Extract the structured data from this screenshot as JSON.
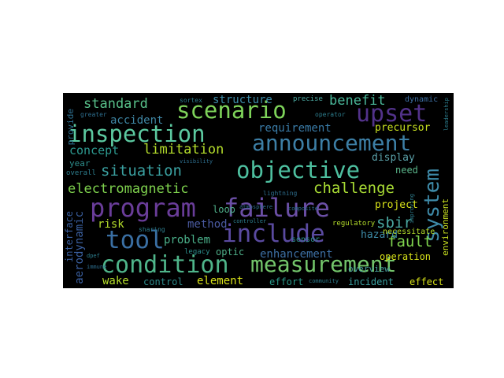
{
  "word_cloud": {
    "background": "#000000",
    "words": [
      {
        "text": "program",
        "color": "#6a3d9a"
      },
      {
        "text": "failure",
        "color": "#6b4fa6"
      },
      {
        "text": "include",
        "color": "#5a4aa0"
      },
      {
        "text": "condition",
        "color": "#4fb58a"
      },
      {
        "text": "measurement",
        "color": "#73c56b"
      },
      {
        "text": "announcement",
        "color": "#3d7fa6"
      },
      {
        "text": "objective",
        "color": "#4ec0a0"
      },
      {
        "text": "inspection",
        "color": "#5cc9a0"
      },
      {
        "text": "scenario",
        "color": "#7ed35a"
      },
      {
        "text": "upset",
        "color": "#52328a"
      },
      {
        "text": "tool",
        "color": "#3a6fa3"
      },
      {
        "text": "system",
        "color": "#3e8aa8"
      },
      {
        "text": "electromagnetic",
        "color": "#7fd34e"
      },
      {
        "text": "situation",
        "color": "#3aa0a0"
      },
      {
        "text": "challenge",
        "color": "#a8db34"
      },
      {
        "text": "standard",
        "color": "#58c08a"
      },
      {
        "text": "limitation",
        "color": "#b5de2b"
      },
      {
        "text": "benefit",
        "color": "#4ab89a"
      },
      {
        "text": "structure",
        "color": "#3d8ca8"
      },
      {
        "text": "accident",
        "color": "#3f87a5"
      },
      {
        "text": "concept",
        "color": "#2d9a90"
      },
      {
        "text": "requirement",
        "color": "#3a7ca8"
      },
      {
        "text": "fault",
        "color": "#7fd34e"
      },
      {
        "text": "sbir",
        "color": "#4aa8a0"
      },
      {
        "text": "enhancement",
        "color": "#3d6fa3"
      },
      {
        "text": "aerodynamic",
        "color": "#3a5f9f"
      },
      {
        "text": "wake",
        "color": "#b5de2b"
      },
      {
        "text": "control",
        "color": "#2d8a8a"
      },
      {
        "text": "element",
        "color": "#d8e219"
      },
      {
        "text": "effort",
        "color": "#2a9a8a"
      },
      {
        "text": "incident",
        "color": "#3aa0a0"
      },
      {
        "text": "effect",
        "color": "#d8e219"
      },
      {
        "text": "problem",
        "color": "#4ab08a"
      },
      {
        "text": "method",
        "color": "#4a5aa0"
      },
      {
        "text": "risk",
        "color": "#b5de2b"
      },
      {
        "text": "loop",
        "color": "#4fb08a"
      },
      {
        "text": "optic",
        "color": "#4fb08a"
      },
      {
        "text": "display",
        "color": "#5aa0a8"
      },
      {
        "text": "precursor",
        "color": "#c8e020"
      },
      {
        "text": "need",
        "color": "#5ab58a"
      },
      {
        "text": "project",
        "color": "#d8e219"
      },
      {
        "text": "hazard",
        "color": "#3d8ca8"
      },
      {
        "text": "necessitate",
        "color": "#b5de2b"
      },
      {
        "text": "operation",
        "color": "#d8e219"
      },
      {
        "text": "overview",
        "color": "#4aa0a0"
      },
      {
        "text": "environment",
        "color": "#c8e020"
      },
      {
        "text": "interface",
        "color": "#3a5f9f"
      },
      {
        "text": "provide",
        "color": "#2d6e8e"
      },
      {
        "text": "year",
        "color": "#2d8e8c"
      },
      {
        "text": "overall",
        "color": "#2d7e8e"
      },
      {
        "text": "regulatory",
        "color": "#b5de2b"
      },
      {
        "text": "sensor",
        "color": "#2d8e8c"
      },
      {
        "text": "precise",
        "color": "#4aa8a0"
      },
      {
        "text": "sortex",
        "color": "#2d7e8e"
      },
      {
        "text": "dynamic",
        "color": "#3d6fa3"
      },
      {
        "text": "leadership",
        "color": "#2d7e8e"
      },
      {
        "text": "greater",
        "color": "#2d6e8e"
      },
      {
        "text": "operator",
        "color": "#2d7e8e"
      },
      {
        "text": "visibility",
        "color": "#2d6e8e"
      },
      {
        "text": "lightning",
        "color": "#2d6e8e"
      },
      {
        "text": "composite",
        "color": "#2d6e8e"
      },
      {
        "text": "atmosphere",
        "color": "#2d6e8e"
      },
      {
        "text": "legacy",
        "color": "#2d8e8c"
      },
      {
        "text": "sharing",
        "color": "#2d7e8e"
      },
      {
        "text": "community",
        "color": "#2d7e8e"
      },
      {
        "text": "immune",
        "color": "#2d6e8e"
      },
      {
        "text": "dpef",
        "color": "#2d7e8e"
      },
      {
        "text": "controller",
        "color": "#2d7e8e"
      },
      {
        "text": "improving",
        "color": "#2d7e8e"
      }
    ]
  }
}
